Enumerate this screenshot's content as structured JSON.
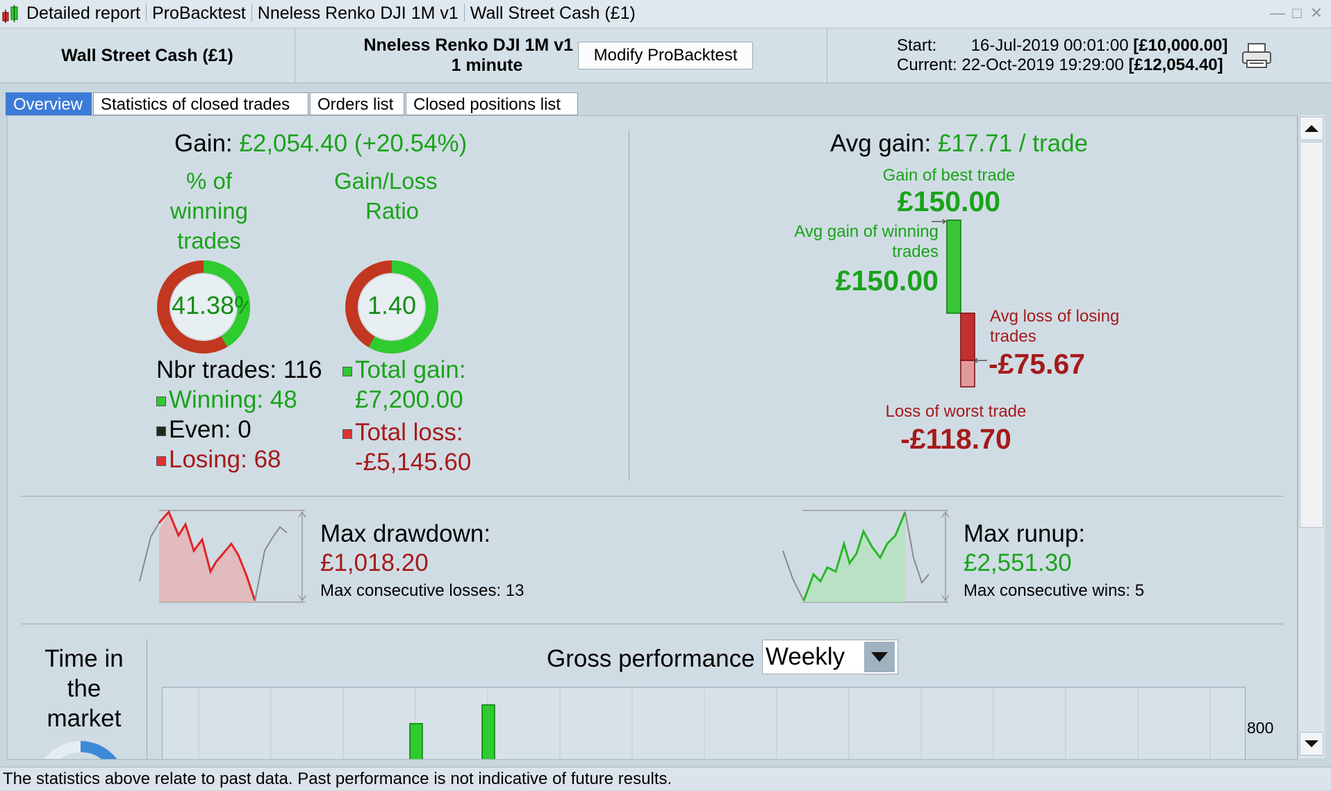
{
  "window": {
    "title_parts": [
      "Detailed report",
      "ProBacktest",
      "Nneless Renko DJI 1M v1",
      "Wall Street Cash (£1)"
    ]
  },
  "header": {
    "instrument": "Wall Street Cash (£1)",
    "strategy_name": "Nneless Renko DJI 1M v1",
    "timeframe": "1 minute",
    "modify_button": "Modify ProBacktest",
    "start_label": "Start:",
    "start_date": "16-Jul-2019 00:01:00",
    "start_value": "[£10,000.00]",
    "current_label": "Current:",
    "current_date": "22-Oct-2019 19:29:00",
    "current_value": "[£12,054.40]"
  },
  "tabs": [
    {
      "label": "Overview",
      "active": true
    },
    {
      "label": "Statistics of closed trades",
      "active": false
    },
    {
      "label": "Orders list",
      "active": false
    },
    {
      "label": "Closed positions list",
      "active": false
    }
  ],
  "overview": {
    "gain_label": "Gain:",
    "gain_value": "£2,054.40",
    "gain_pct": "(+20.54%)",
    "winning_pct_title_1": "% of",
    "winning_pct_title_2": "winning",
    "winning_pct_title_3": "trades",
    "winning_pct_value": "41.38%",
    "winning_pct_fraction": 0.4138,
    "ratio_title_1": "Gain/Loss",
    "ratio_title_2": "Ratio",
    "ratio_value": "1.40",
    "ratio_fraction": 0.583,
    "nbr_trades": "Nbr trades: 116",
    "winning": "Winning: 48",
    "even": "Even: 0",
    "losing": "Losing: 68",
    "total_gain_label": "Total gain:",
    "total_gain_value": "£7,200.00",
    "total_loss_label": "Total loss:",
    "total_loss_value": "-£5,145.60",
    "avg_gain_label": "Avg gain:",
    "avg_gain_value": "£17.71 / trade",
    "best_trade_label": "Gain of best trade",
    "best_trade_value": "£150.00",
    "avg_win_label_1": "Avg gain of winning",
    "avg_win_label_2": "trades",
    "avg_win_value": "£150.00",
    "avg_loss_label_1": "Avg loss of losing",
    "avg_loss_label_2": "trades",
    "avg_loss_value": "-£75.67",
    "worst_trade_label": "Loss of worst trade",
    "worst_trade_value": "-£118.70",
    "max_drawdown_label": "Max drawdown:",
    "max_drawdown_value": "£1,018.20",
    "max_consec_losses": "Max consecutive losses: 13",
    "max_runup_label": "Max runup:",
    "max_runup_value": "£2,551.30",
    "max_consec_wins": "Max consecutive wins: 5",
    "time_in_market_1": "Time in",
    "time_in_market_2": "the",
    "time_in_market_3": "market",
    "gross_perf_label": "Gross performance",
    "gross_perf_period": "Weekly",
    "gross_perf_axis_tick": "800"
  },
  "status_bar": "The statistics above relate to past data. Past performance is not indicative of future results.",
  "colors": {
    "accent_blue": "#3c7bd7",
    "gain_green": "#19a319",
    "loss_red": "#a51a1a"
  }
}
